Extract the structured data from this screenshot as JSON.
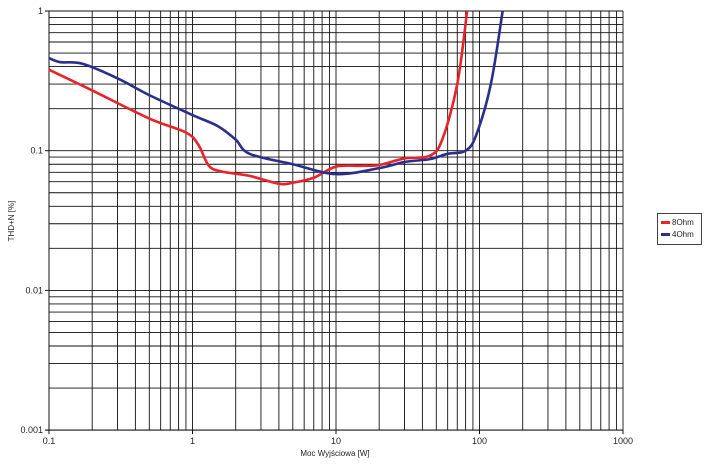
{
  "chart_data": {
    "type": "line",
    "title": "",
    "xlabel": "Moc Wyjściowa [W]",
    "ylabel": "THD+N [%]",
    "xscale": "log",
    "yscale": "log",
    "xlim": [
      0.1,
      1000
    ],
    "ylim": [
      0.001,
      1
    ],
    "x_ticks": [
      "0.1",
      "1",
      "10",
      "100",
      "1000"
    ],
    "y_ticks": [
      "0.001",
      "0.01",
      "0.1",
      "1"
    ],
    "grid": true,
    "legend_position": "right",
    "series": [
      {
        "name": "8Ohm",
        "color": "#e8232a",
        "points": [
          [
            0.1,
            0.38
          ],
          [
            0.2,
            0.27
          ],
          [
            0.5,
            0.17
          ],
          [
            0.9,
            0.135
          ],
          [
            1.1,
            0.11
          ],
          [
            1.3,
            0.078
          ],
          [
            1.6,
            0.071
          ],
          [
            2.5,
            0.066
          ],
          [
            4,
            0.058
          ],
          [
            5,
            0.059
          ],
          [
            7,
            0.064
          ],
          [
            10,
            0.077
          ],
          [
            15,
            0.078
          ],
          [
            20,
            0.079
          ],
          [
            30,
            0.088
          ],
          [
            45,
            0.092
          ],
          [
            55,
            0.12
          ],
          [
            70,
            0.3
          ],
          [
            82,
            1
          ]
        ]
      },
      {
        "name": "4Ohm",
        "color": "#2b2f8c",
        "points": [
          [
            0.1,
            0.46
          ],
          [
            0.12,
            0.43
          ],
          [
            0.17,
            0.42
          ],
          [
            0.3,
            0.33
          ],
          [
            0.5,
            0.25
          ],
          [
            1,
            0.18
          ],
          [
            1.5,
            0.15
          ],
          [
            2,
            0.12
          ],
          [
            2.5,
            0.095
          ],
          [
            5,
            0.08
          ],
          [
            10,
            0.068
          ],
          [
            20,
            0.075
          ],
          [
            30,
            0.083
          ],
          [
            45,
            0.087
          ],
          [
            60,
            0.095
          ],
          [
            80,
            0.1
          ],
          [
            95,
            0.13
          ],
          [
            120,
            0.3
          ],
          [
            145,
            1
          ]
        ]
      }
    ]
  },
  "legend": {
    "items": [
      {
        "label": "8Ohm",
        "color": "#e8232a"
      },
      {
        "label": "4Ohm",
        "color": "#2b2f8c"
      }
    ]
  }
}
